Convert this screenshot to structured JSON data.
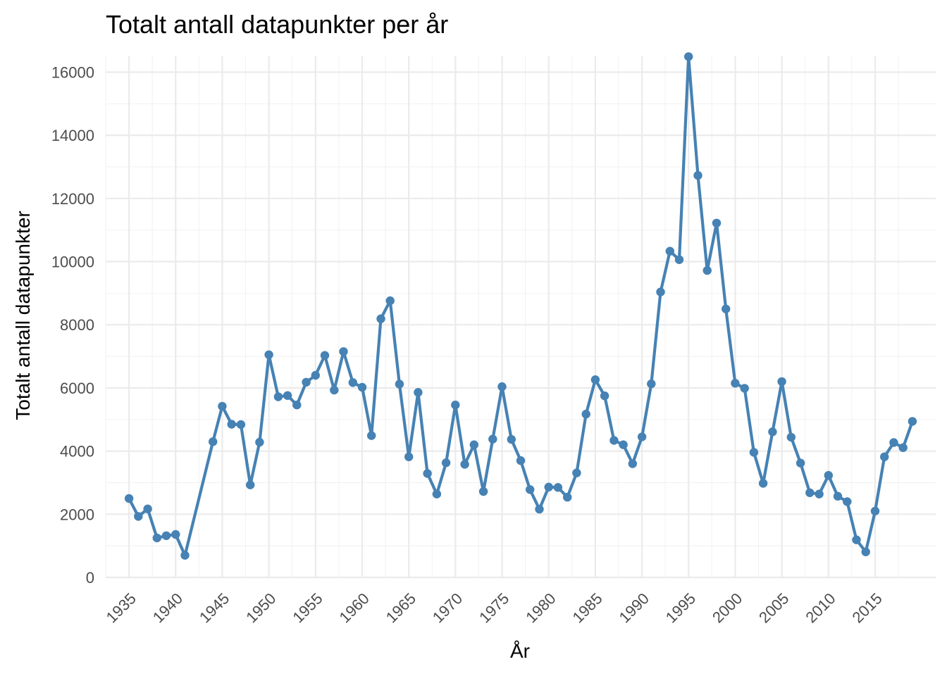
{
  "chart_data": {
    "type": "line",
    "title": "Totalt antall datapunkter per år",
    "xlabel": "År",
    "ylabel": "Totalt antall datapunkter",
    "xlim": [
      1932.5,
      2021.5
    ],
    "ylim": [
      0,
      16500
    ],
    "x_ticks": [
      1935,
      1940,
      1945,
      1950,
      1955,
      1960,
      1965,
      1970,
      1975,
      1980,
      1985,
      1990,
      1995,
      2000,
      2005,
      2010,
      2015
    ],
    "y_ticks": [
      0,
      2000,
      4000,
      6000,
      8000,
      10000,
      12000,
      14000,
      16000
    ],
    "grid": true,
    "legend": "none",
    "series": [
      {
        "color": "#4682b4",
        "x": [
          1935,
          1936,
          1937,
          1938,
          1939,
          1940,
          1941,
          1944,
          1945,
          1946,
          1947,
          1948,
          1949,
          1950,
          1951,
          1952,
          1953,
          1954,
          1955,
          1956,
          1957,
          1958,
          1959,
          1960,
          1961,
          1962,
          1963,
          1964,
          1965,
          1966,
          1967,
          1968,
          1969,
          1970,
          1971,
          1972,
          1973,
          1974,
          1975,
          1976,
          1977,
          1978,
          1979,
          1980,
          1981,
          1982,
          1983,
          1984,
          1985,
          1986,
          1987,
          1988,
          1989,
          1990,
          1991,
          1992,
          1993,
          1994,
          1995,
          1996,
          1997,
          1998,
          1999,
          2000,
          2001,
          2002,
          2003,
          2004,
          2005,
          2006,
          2007,
          2008,
          2009,
          2010,
          2011,
          2012,
          2013,
          2014,
          2015,
          2016,
          2017,
          2018,
          2019
        ],
        "values": [
          2500,
          1930,
          2170,
          1250,
          1320,
          1360,
          700,
          4300,
          5420,
          4850,
          4840,
          2930,
          4280,
          7050,
          5720,
          5760,
          5460,
          6180,
          6400,
          7030,
          5930,
          7150,
          6170,
          6020,
          4490,
          8190,
          8760,
          6120,
          3820,
          5860,
          3290,
          2640,
          3630,
          5460,
          3580,
          4200,
          2720,
          4380,
          6040,
          4370,
          3700,
          2780,
          2160,
          2860,
          2850,
          2540,
          3310,
          5170,
          6260,
          5750,
          4340,
          4200,
          3600,
          4450,
          6130,
          9040,
          10330,
          10060,
          16490,
          12730,
          9720,
          11220,
          8500,
          6150,
          5990,
          3960,
          2980,
          4610,
          6200,
          4440,
          3620,
          2680,
          2640,
          3230,
          2570,
          2400,
          1190,
          810,
          2100,
          3820,
          4270,
          4110,
          4940
        ]
      }
    ]
  }
}
